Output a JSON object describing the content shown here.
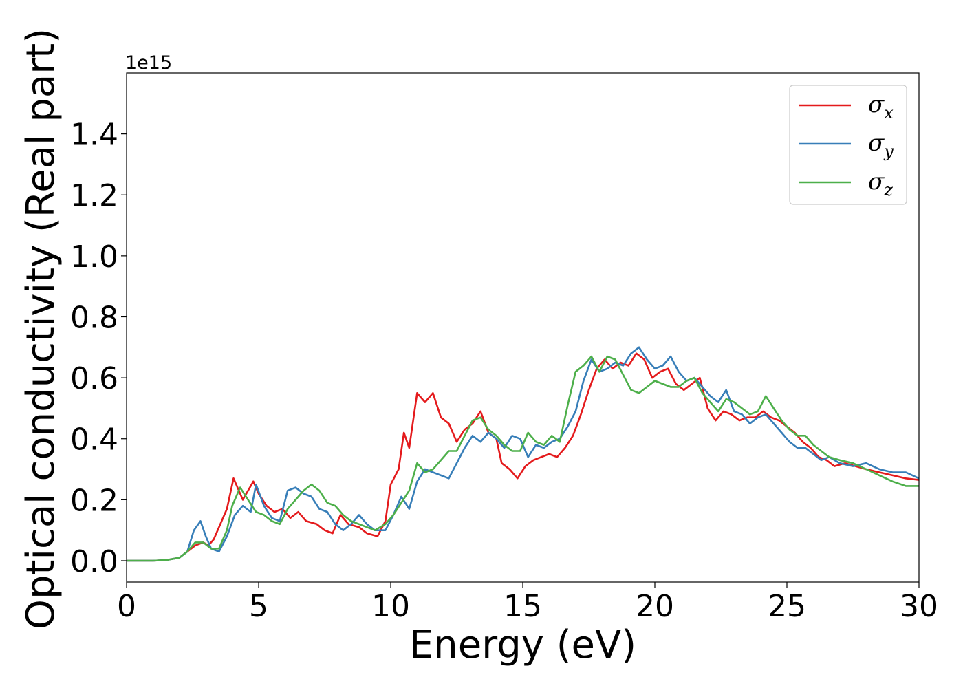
{
  "chart_data": {
    "type": "line",
    "title": "",
    "xlabel": "Energy (eV)",
    "ylabel": "Optical conductivity (Real part)",
    "y_offset_label": "1e15",
    "xlim": [
      0,
      30
    ],
    "ylim": [
      -0.07,
      1.6
    ],
    "x_ticks": [
      "0",
      "5",
      "10",
      "15",
      "20",
      "25",
      "30"
    ],
    "y_ticks": [
      "0.0",
      "0.2",
      "0.4",
      "0.6",
      "0.8",
      "1.0",
      "1.2",
      "1.4"
    ],
    "grid": false,
    "legend_position": "top-right",
    "series": [
      {
        "name": "σx",
        "base": "σ",
        "sub": "x",
        "color": "#e41a1c",
        "points": [
          [
            0,
            0
          ],
          [
            1,
            0
          ],
          [
            1.5,
            0.002
          ],
          [
            2,
            0.01
          ],
          [
            2.3,
            0.03
          ],
          [
            2.6,
            0.05
          ],
          [
            2.9,
            0.06
          ],
          [
            3.1,
            0.05
          ],
          [
            3.3,
            0.07
          ],
          [
            3.5,
            0.11
          ],
          [
            3.8,
            0.17
          ],
          [
            4.05,
            0.27
          ],
          [
            4.2,
            0.24
          ],
          [
            4.4,
            0.2
          ],
          [
            4.6,
            0.23
          ],
          [
            4.8,
            0.26
          ],
          [
            5.0,
            0.22
          ],
          [
            5.3,
            0.18
          ],
          [
            5.6,
            0.16
          ],
          [
            5.9,
            0.17
          ],
          [
            6.2,
            0.14
          ],
          [
            6.5,
            0.16
          ],
          [
            6.8,
            0.13
          ],
          [
            7.2,
            0.12
          ],
          [
            7.5,
            0.1
          ],
          [
            7.8,
            0.09
          ],
          [
            8.1,
            0.15
          ],
          [
            8.4,
            0.12
          ],
          [
            8.8,
            0.11
          ],
          [
            9.1,
            0.09
          ],
          [
            9.5,
            0.08
          ],
          [
            9.8,
            0.13
          ],
          [
            10.0,
            0.25
          ],
          [
            10.3,
            0.3
          ],
          [
            10.5,
            0.42
          ],
          [
            10.7,
            0.37
          ],
          [
            11.0,
            0.55
          ],
          [
            11.3,
            0.52
          ],
          [
            11.6,
            0.55
          ],
          [
            11.9,
            0.47
          ],
          [
            12.2,
            0.45
          ],
          [
            12.5,
            0.39
          ],
          [
            12.8,
            0.43
          ],
          [
            13.1,
            0.45
          ],
          [
            13.4,
            0.49
          ],
          [
            13.7,
            0.42
          ],
          [
            14.0,
            0.4
          ],
          [
            14.2,
            0.32
          ],
          [
            14.5,
            0.3
          ],
          [
            14.8,
            0.27
          ],
          [
            15.1,
            0.31
          ],
          [
            15.4,
            0.33
          ],
          [
            15.7,
            0.34
          ],
          [
            16.0,
            0.35
          ],
          [
            16.3,
            0.34
          ],
          [
            16.6,
            0.37
          ],
          [
            16.9,
            0.41
          ],
          [
            17.2,
            0.48
          ],
          [
            17.5,
            0.56
          ],
          [
            17.8,
            0.63
          ],
          [
            18.1,
            0.66
          ],
          [
            18.4,
            0.63
          ],
          [
            18.7,
            0.65
          ],
          [
            19.0,
            0.64
          ],
          [
            19.3,
            0.68
          ],
          [
            19.6,
            0.66
          ],
          [
            19.9,
            0.6
          ],
          [
            20.2,
            0.62
          ],
          [
            20.5,
            0.63
          ],
          [
            20.8,
            0.58
          ],
          [
            21.1,
            0.56
          ],
          [
            21.4,
            0.58
          ],
          [
            21.7,
            0.6
          ],
          [
            22.0,
            0.5
          ],
          [
            22.3,
            0.46
          ],
          [
            22.6,
            0.49
          ],
          [
            22.9,
            0.48
          ],
          [
            23.2,
            0.46
          ],
          [
            23.5,
            0.47
          ],
          [
            23.8,
            0.47
          ],
          [
            24.1,
            0.49
          ],
          [
            24.4,
            0.47
          ],
          [
            24.7,
            0.46
          ],
          [
            25.0,
            0.44
          ],
          [
            25.3,
            0.42
          ],
          [
            25.6,
            0.39
          ],
          [
            25.9,
            0.37
          ],
          [
            26.2,
            0.34
          ],
          [
            26.5,
            0.33
          ],
          [
            26.8,
            0.31
          ],
          [
            27.2,
            0.32
          ],
          [
            27.6,
            0.31
          ],
          [
            28.0,
            0.3
          ],
          [
            28.5,
            0.29
          ],
          [
            29.0,
            0.28
          ],
          [
            29.5,
            0.27
          ],
          [
            30,
            0.265
          ]
        ]
      },
      {
        "name": "σy",
        "base": "σ",
        "sub": "y",
        "color": "#377eb8",
        "points": [
          [
            0,
            0
          ],
          [
            1,
            0
          ],
          [
            1.5,
            0.002
          ],
          [
            2,
            0.01
          ],
          [
            2.3,
            0.03
          ],
          [
            2.55,
            0.1
          ],
          [
            2.8,
            0.13
          ],
          [
            3.0,
            0.08
          ],
          [
            3.2,
            0.04
          ],
          [
            3.5,
            0.03
          ],
          [
            3.8,
            0.08
          ],
          [
            4.1,
            0.15
          ],
          [
            4.4,
            0.18
          ],
          [
            4.7,
            0.16
          ],
          [
            4.9,
            0.25
          ],
          [
            5.2,
            0.18
          ],
          [
            5.5,
            0.14
          ],
          [
            5.8,
            0.13
          ],
          [
            6.1,
            0.23
          ],
          [
            6.4,
            0.24
          ],
          [
            6.7,
            0.22
          ],
          [
            7.0,
            0.21
          ],
          [
            7.3,
            0.17
          ],
          [
            7.6,
            0.16
          ],
          [
            7.9,
            0.12
          ],
          [
            8.2,
            0.1
          ],
          [
            8.5,
            0.12
          ],
          [
            8.8,
            0.15
          ],
          [
            9.1,
            0.12
          ],
          [
            9.4,
            0.1
          ],
          [
            9.8,
            0.1
          ],
          [
            10.1,
            0.15
          ],
          [
            10.4,
            0.21
          ],
          [
            10.7,
            0.17
          ],
          [
            11.0,
            0.26
          ],
          [
            11.3,
            0.3
          ],
          [
            11.6,
            0.29
          ],
          [
            11.9,
            0.28
          ],
          [
            12.2,
            0.27
          ],
          [
            12.5,
            0.32
          ],
          [
            12.8,
            0.37
          ],
          [
            13.1,
            0.41
          ],
          [
            13.4,
            0.39
          ],
          [
            13.7,
            0.42
          ],
          [
            14.0,
            0.4
          ],
          [
            14.3,
            0.37
          ],
          [
            14.6,
            0.41
          ],
          [
            14.9,
            0.4
          ],
          [
            15.2,
            0.34
          ],
          [
            15.5,
            0.38
          ],
          [
            15.8,
            0.37
          ],
          [
            16.1,
            0.39
          ],
          [
            16.4,
            0.4
          ],
          [
            16.7,
            0.44
          ],
          [
            17.0,
            0.49
          ],
          [
            17.3,
            0.59
          ],
          [
            17.6,
            0.66
          ],
          [
            17.9,
            0.62
          ],
          [
            18.2,
            0.63
          ],
          [
            18.5,
            0.65
          ],
          [
            18.8,
            0.64
          ],
          [
            19.1,
            0.68
          ],
          [
            19.4,
            0.7
          ],
          [
            19.7,
            0.66
          ],
          [
            20.0,
            0.63
          ],
          [
            20.3,
            0.64
          ],
          [
            20.6,
            0.67
          ],
          [
            20.9,
            0.62
          ],
          [
            21.2,
            0.59
          ],
          [
            21.5,
            0.6
          ],
          [
            21.8,
            0.57
          ],
          [
            22.1,
            0.54
          ],
          [
            22.4,
            0.52
          ],
          [
            22.7,
            0.56
          ],
          [
            23.0,
            0.49
          ],
          [
            23.3,
            0.48
          ],
          [
            23.6,
            0.45
          ],
          [
            23.9,
            0.47
          ],
          [
            24.2,
            0.48
          ],
          [
            24.5,
            0.45
          ],
          [
            24.8,
            0.42
          ],
          [
            25.1,
            0.39
          ],
          [
            25.4,
            0.37
          ],
          [
            25.7,
            0.37
          ],
          [
            26.0,
            0.35
          ],
          [
            26.3,
            0.33
          ],
          [
            26.6,
            0.34
          ],
          [
            27.0,
            0.32
          ],
          [
            27.5,
            0.31
          ],
          [
            28.0,
            0.32
          ],
          [
            28.5,
            0.3
          ],
          [
            29.0,
            0.29
          ],
          [
            29.5,
            0.29
          ],
          [
            30,
            0.27
          ]
        ]
      },
      {
        "name": "σz",
        "base": "σ",
        "sub": "z",
        "color": "#4daf4a",
        "points": [
          [
            0,
            0
          ],
          [
            1,
            0
          ],
          [
            1.5,
            0.002
          ],
          [
            2,
            0.01
          ],
          [
            2.3,
            0.03
          ],
          [
            2.6,
            0.06
          ],
          [
            2.9,
            0.06
          ],
          [
            3.2,
            0.04
          ],
          [
            3.5,
            0.04
          ],
          [
            3.8,
            0.1
          ],
          [
            4.0,
            0.18
          ],
          [
            4.3,
            0.24
          ],
          [
            4.6,
            0.2
          ],
          [
            4.9,
            0.16
          ],
          [
            5.2,
            0.15
          ],
          [
            5.5,
            0.13
          ],
          [
            5.8,
            0.12
          ],
          [
            6.1,
            0.17
          ],
          [
            6.4,
            0.2
          ],
          [
            6.7,
            0.23
          ],
          [
            7.0,
            0.25
          ],
          [
            7.3,
            0.23
          ],
          [
            7.6,
            0.19
          ],
          [
            7.9,
            0.18
          ],
          [
            8.2,
            0.15
          ],
          [
            8.5,
            0.13
          ],
          [
            8.8,
            0.12
          ],
          [
            9.1,
            0.11
          ],
          [
            9.4,
            0.1
          ],
          [
            9.8,
            0.12
          ],
          [
            10.1,
            0.15
          ],
          [
            10.4,
            0.19
          ],
          [
            10.7,
            0.23
          ],
          [
            11.0,
            0.32
          ],
          [
            11.3,
            0.29
          ],
          [
            11.6,
            0.3
          ],
          [
            11.9,
            0.33
          ],
          [
            12.2,
            0.36
          ],
          [
            12.5,
            0.36
          ],
          [
            12.8,
            0.41
          ],
          [
            13.1,
            0.46
          ],
          [
            13.4,
            0.47
          ],
          [
            13.7,
            0.43
          ],
          [
            14.0,
            0.41
          ],
          [
            14.3,
            0.38
          ],
          [
            14.6,
            0.36
          ],
          [
            14.9,
            0.36
          ],
          [
            15.2,
            0.42
          ],
          [
            15.5,
            0.39
          ],
          [
            15.8,
            0.38
          ],
          [
            16.1,
            0.41
          ],
          [
            16.4,
            0.39
          ],
          [
            16.7,
            0.51
          ],
          [
            17.0,
            0.62
          ],
          [
            17.3,
            0.64
          ],
          [
            17.6,
            0.67
          ],
          [
            17.9,
            0.62
          ],
          [
            18.2,
            0.67
          ],
          [
            18.5,
            0.66
          ],
          [
            18.8,
            0.61
          ],
          [
            19.1,
            0.56
          ],
          [
            19.4,
            0.55
          ],
          [
            19.7,
            0.57
          ],
          [
            20.0,
            0.59
          ],
          [
            20.3,
            0.58
          ],
          [
            20.6,
            0.57
          ],
          [
            20.9,
            0.57
          ],
          [
            21.2,
            0.59
          ],
          [
            21.5,
            0.6
          ],
          [
            21.8,
            0.55
          ],
          [
            22.1,
            0.52
          ],
          [
            22.4,
            0.49
          ],
          [
            22.7,
            0.53
          ],
          [
            23.0,
            0.52
          ],
          [
            23.3,
            0.5
          ],
          [
            23.6,
            0.48
          ],
          [
            23.9,
            0.49
          ],
          [
            24.2,
            0.54
          ],
          [
            24.5,
            0.5
          ],
          [
            24.8,
            0.46
          ],
          [
            25.1,
            0.43
          ],
          [
            25.4,
            0.41
          ],
          [
            25.7,
            0.41
          ],
          [
            26.0,
            0.38
          ],
          [
            26.3,
            0.36
          ],
          [
            26.6,
            0.34
          ],
          [
            27.0,
            0.33
          ],
          [
            27.5,
            0.32
          ],
          [
            28.0,
            0.3
          ],
          [
            28.5,
            0.28
          ],
          [
            29.0,
            0.26
          ],
          [
            29.5,
            0.245
          ],
          [
            30,
            0.245
          ]
        ]
      }
    ]
  }
}
